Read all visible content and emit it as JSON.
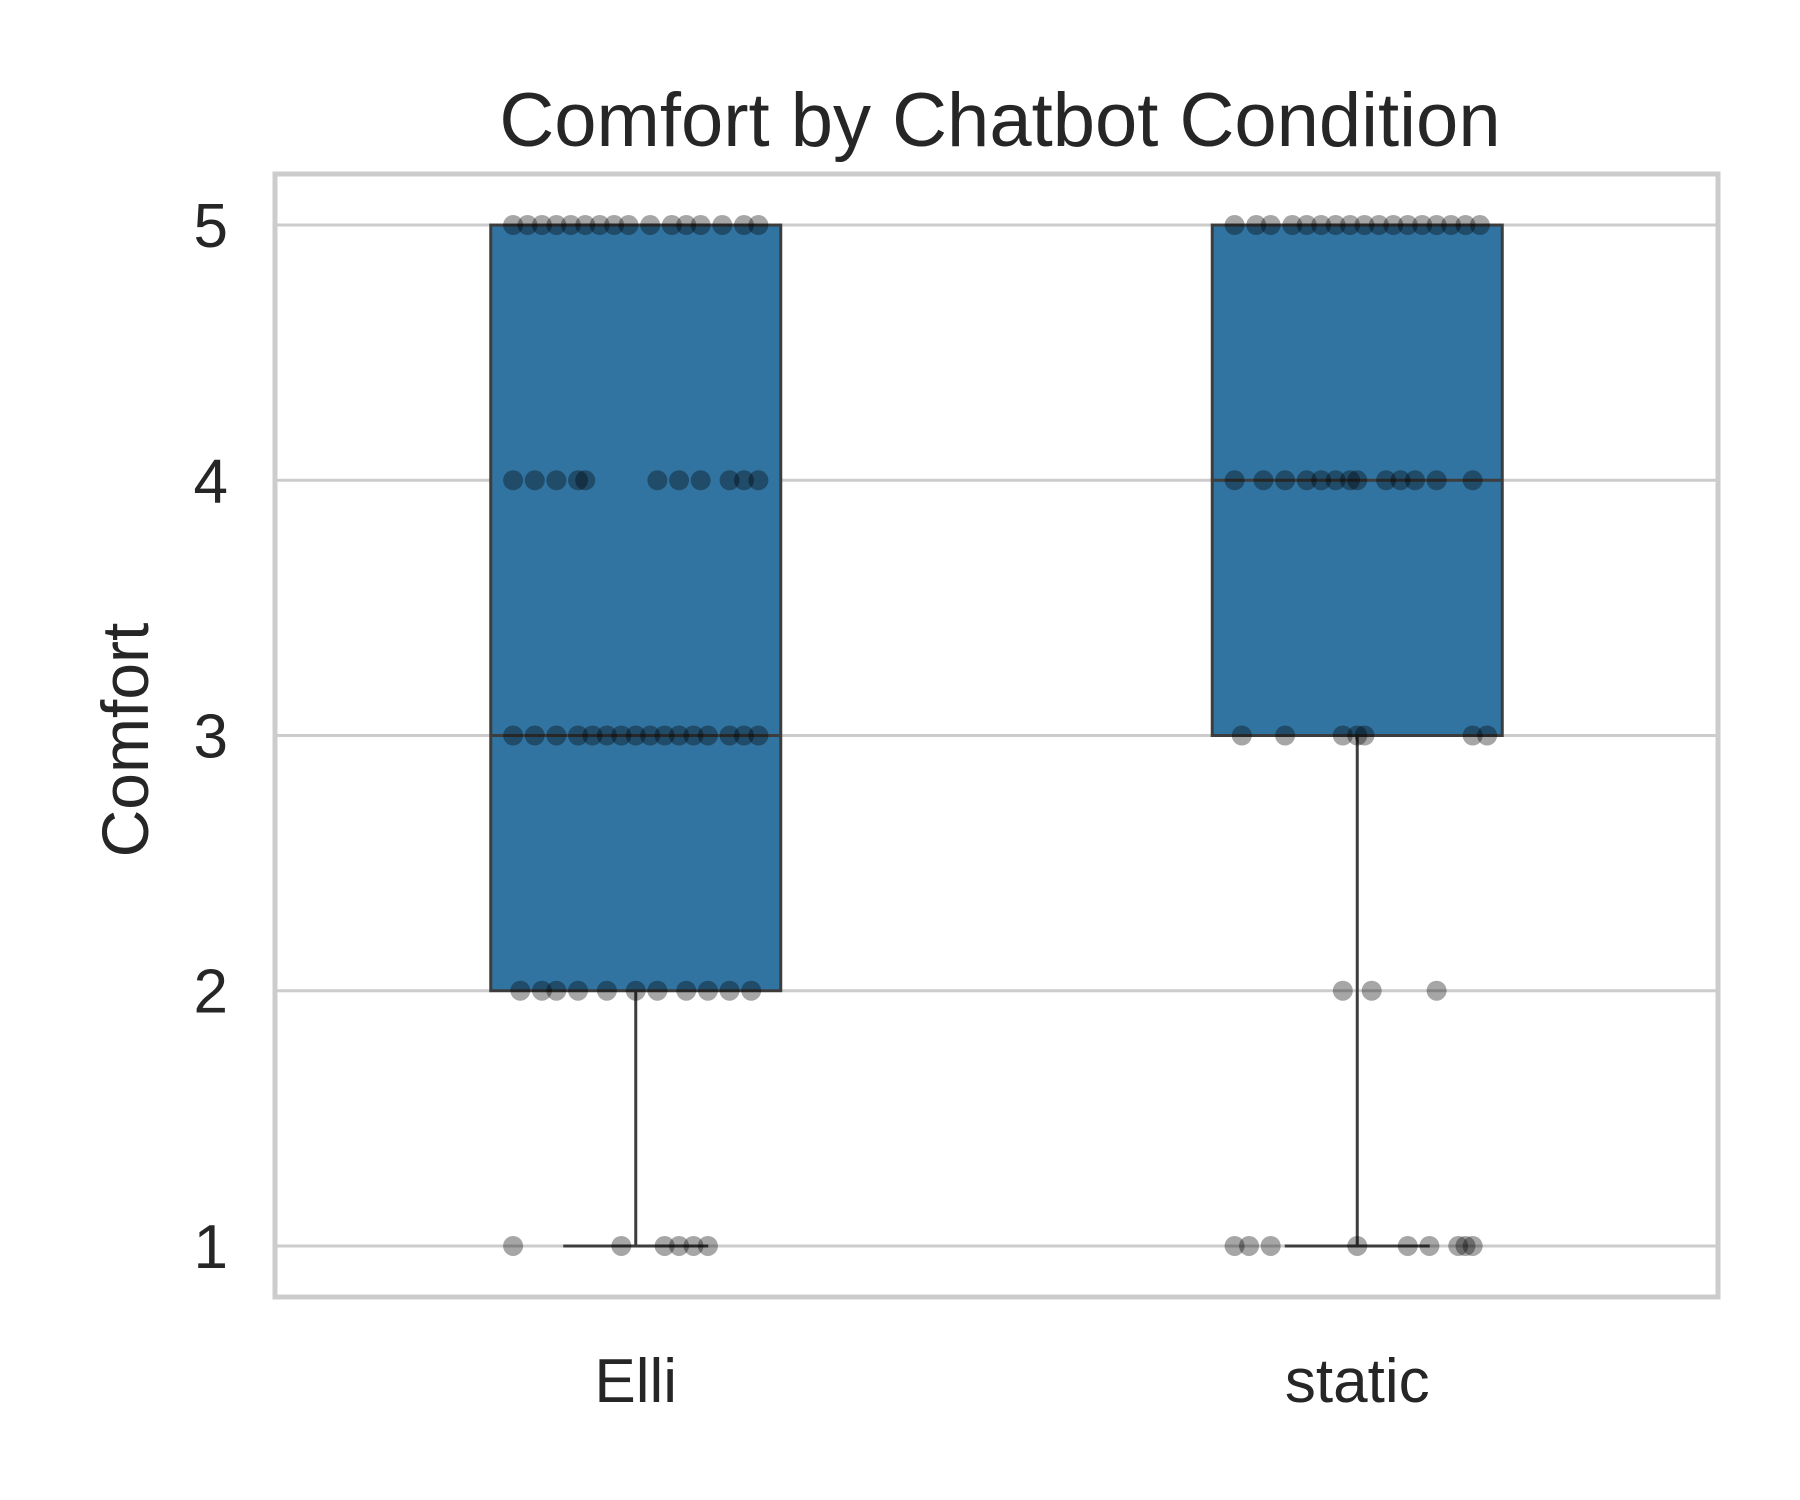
{
  "chart_data": {
    "type": "box",
    "title": "Comfort by Chatbot Condition",
    "xlabel": "",
    "ylabel": "Comfort",
    "ylim": [
      0.8,
      5.2
    ],
    "yticks": [
      "1",
      "2",
      "3",
      "4",
      "5"
    ],
    "grid": true,
    "legend": "none",
    "colors": {
      "box_fill": "#3274a1",
      "box_edge": "#3d3d3d",
      "grid": "#cccccc",
      "point": "#000000"
    },
    "categories": [
      "Elli",
      "static"
    ],
    "boxes": [
      {
        "category": "Elli",
        "whisker_low": 1,
        "q1": 2,
        "median": 3,
        "q3": 5,
        "whisker_high": 5,
        "points": [
          {
            "y": 5,
            "jitter": [
              -0.17,
              -0.15,
              -0.13,
              -0.11,
              -0.09,
              -0.07,
              -0.05,
              -0.03,
              -0.01,
              0.02,
              0.05,
              0.07,
              0.09,
              0.12,
              0.15,
              0.17
            ]
          },
          {
            "y": 4,
            "jitter": [
              -0.17,
              -0.14,
              -0.11,
              -0.08,
              -0.07,
              0.03,
              0.06,
              0.09,
              0.13,
              0.15,
              0.17
            ]
          },
          {
            "y": 3,
            "jitter": [
              -0.17,
              -0.14,
              -0.11,
              -0.08,
              -0.06,
              -0.04,
              -0.02,
              0.0,
              0.02,
              0.04,
              0.06,
              0.08,
              0.1,
              0.13,
              0.15,
              0.17
            ]
          },
          {
            "y": 2,
            "jitter": [
              -0.16,
              -0.13,
              -0.11,
              -0.08,
              -0.04,
              0.0,
              0.03,
              0.07,
              0.1,
              0.13,
              0.16
            ]
          },
          {
            "y": 1,
            "jitter": [
              -0.17,
              -0.02,
              0.04,
              0.06,
              0.08,
              0.1
            ]
          }
        ]
      },
      {
        "category": "static",
        "whisker_low": 1,
        "q1": 3,
        "median": 4,
        "q3": 5,
        "whisker_high": 5,
        "points": [
          {
            "y": 5,
            "jitter": [
              -0.17,
              -0.14,
              -0.12,
              -0.09,
              -0.07,
              -0.05,
              -0.03,
              -0.01,
              0.01,
              0.03,
              0.05,
              0.07,
              0.09,
              0.11,
              0.13,
              0.15,
              0.17
            ]
          },
          {
            "y": 4,
            "jitter": [
              -0.17,
              -0.13,
              -0.1,
              -0.07,
              -0.05,
              -0.03,
              -0.01,
              0.0,
              0.04,
              0.06,
              0.08,
              0.11,
              0.16
            ]
          },
          {
            "y": 3,
            "jitter": [
              -0.16,
              -0.1,
              -0.02,
              0.0,
              0.01,
              0.16,
              0.18
            ]
          },
          {
            "y": 2,
            "jitter": [
              -0.02,
              0.02,
              0.11
            ]
          },
          {
            "y": 1,
            "jitter": [
              -0.17,
              -0.15,
              -0.12,
              0.0,
              0.07,
              0.1,
              0.14,
              0.15,
              0.16
            ]
          }
        ]
      }
    ]
  }
}
